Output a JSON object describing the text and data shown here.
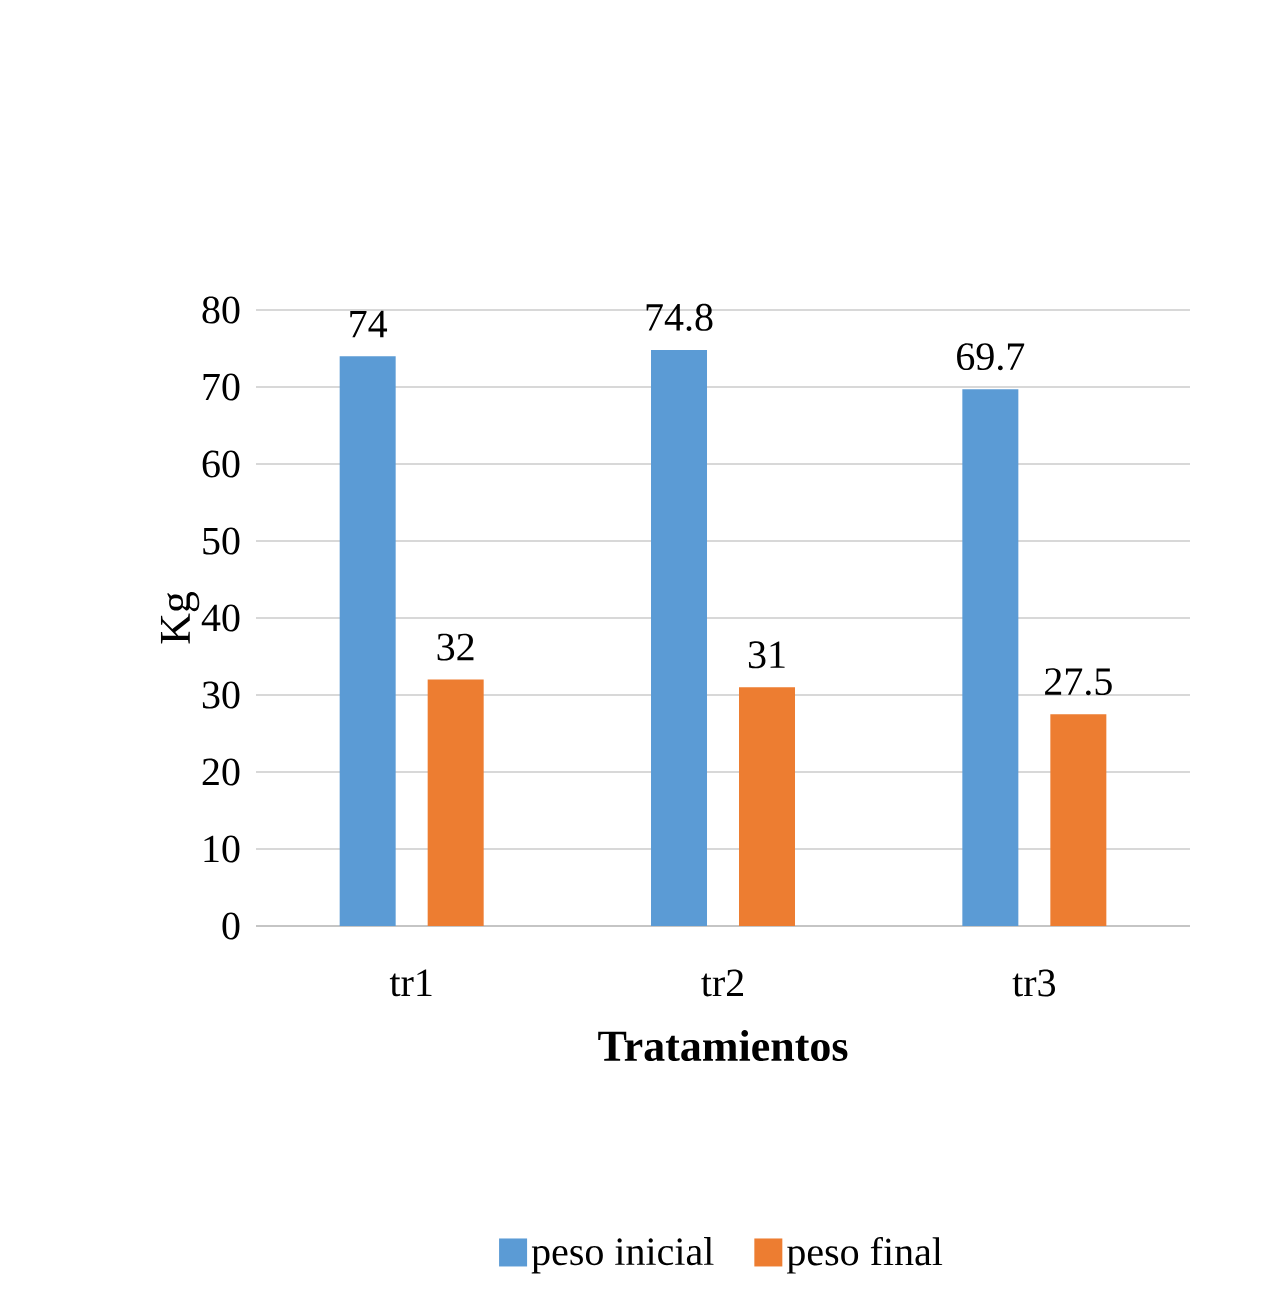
{
  "chart_data": {
    "type": "bar",
    "xlabel": "Tratamientos",
    "ylabel": "Kg",
    "categories": [
      "tr1",
      "tr2",
      "tr3"
    ],
    "series": [
      {
        "name": "peso inicial",
        "color": "#5b9bd5",
        "values": [
          74,
          74.8,
          69.7
        ]
      },
      {
        "name": "peso final",
        "color": "#ed7d31",
        "values": [
          32,
          31,
          27.5
        ]
      }
    ],
    "ylim": [
      0,
      80
    ],
    "yticks": [
      0,
      10,
      20,
      30,
      40,
      50,
      60,
      70,
      80
    ],
    "grid": "y",
    "legend": "bottom",
    "data_labels": true
  }
}
